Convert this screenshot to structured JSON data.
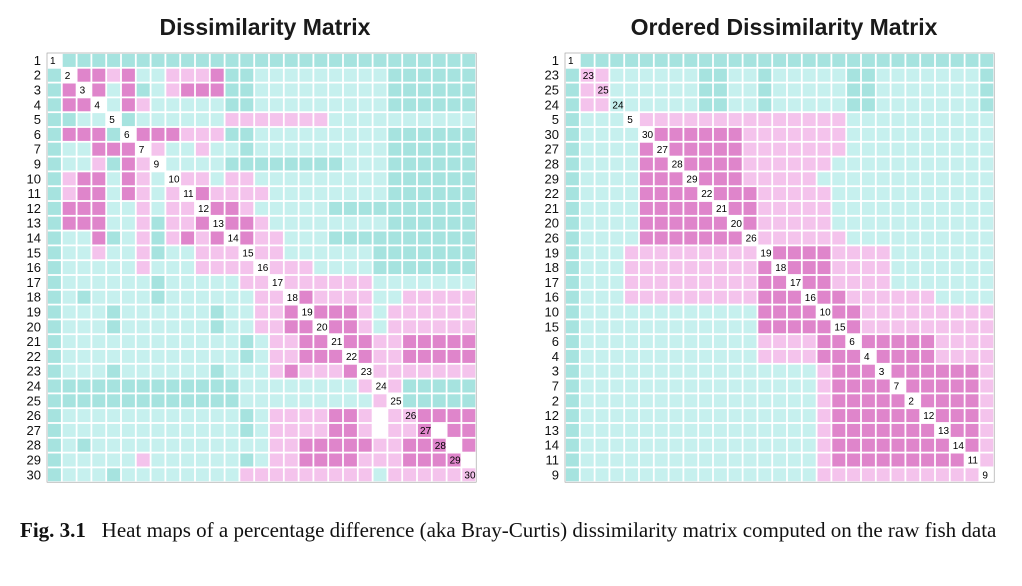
{
  "figure": {
    "caption_label": "Fig. 3.1",
    "caption_text": "Heat maps of a percentage difference (aka Bray-Curtis) dissimilarity matrix computed on the raw fish data"
  },
  "colors": {
    "level1": "#df85cb",
    "level2": "#f4c3ec",
    "level3": "#c6f0ee",
    "level4": "#a6e3df",
    "diag": "#ffffff",
    "grid": "#ffffff"
  },
  "chart_data": [
    {
      "type": "heatmap",
      "title": "Dissimilarity Matrix",
      "row_labels": [
        "1",
        "2",
        "3",
        "4",
        "5",
        "6",
        "7",
        "9",
        "10",
        "11",
        "12",
        "13",
        "14",
        "15",
        "16",
        "17",
        "18",
        "19",
        "20",
        "21",
        "22",
        "23",
        "24",
        "25",
        "26",
        "27",
        "28",
        "29",
        "30"
      ],
      "levels": [
        "04444444444444444444444444444",
        "40112133222144333333333444444",
        "41013143211144333333333444444",
        "41103123333344333333333444444",
        "44330433333322222223333333333",
        "41114011122244333333333444444",
        "43311102332334333333333444444",
        "43324120333344444444333444444",
        "42113123022322333333333444444",
        "42113123201222233333333444444",
        "41113323220112333334444444444",
        "41113324221011233333333444444",
        "43314324212101223334444444444",
        "43323324332220223333334444444",
        "43333323332222022233334444444",
        "43333334333332202222223333333",
        "43433334333333220122223322222",
        "43334333333433221011123222222",
        "43334333333433221101123222222",
        "43333333333334322110112211111",
        "43333333333334322111012211111",
        "43334333333433321222102222222",
        "44444444444443333333320244444",
        "44444444444443333333332044444",
        "43333333333334322221120221111",
        "43333333333334322221120221011",
        "43433333333333322111112211101",
        "43333323333334322111122211110",
        "43334333333332222222223222222"
      ]
    },
    {
      "type": "heatmap",
      "title": "Ordered Dissimilarity Matrix",
      "row_labels": [
        "1",
        "23",
        "25",
        "24",
        "5",
        "30",
        "27",
        "28",
        "29",
        "22",
        "21",
        "20",
        "26",
        "19",
        "18",
        "17",
        "16",
        "10",
        "15",
        "6",
        "4",
        "3",
        "7",
        "2",
        "12",
        "13",
        "14",
        "11",
        "9"
      ],
      "levels": [
        "04444444444444444444444444444",
        "42233333344334333334433333334",
        "42233333344334333334433333334",
        "42233333344334333334433333334",
        "43330222222222222223333333333",
        "43333011111122222223333333333",
        "43333101111122222223333333333",
        "43333110111122222233333333333",
        "43333111011122222333333333333",
        "43333111101112222233333333333",
        "43333111110112222233333333333",
        "43333111111012222233333333333",
        "43333111111102222223333333333",
        "43332222222220111122223333333",
        "43332222222221011122223333333",
        "43332222222221101122223333333",
        "43332222222221110112222223333",
        "43333333333331111011222222222",
        "43333333333331111101222222222",
        "43333333333332222110111112222",
        "43333333333332222111011112222",
        "43333333333333333211101111112",
        "43333333333333333211110111112",
        "43333333333333333211111011112",
        "43333333333333333211111101112",
        "43333333333333333211111110112",
        "43333333333333333211111111012",
        "43333333333333333211111111102",
        "43333333333333333222222222220"
      ]
    }
  ]
}
